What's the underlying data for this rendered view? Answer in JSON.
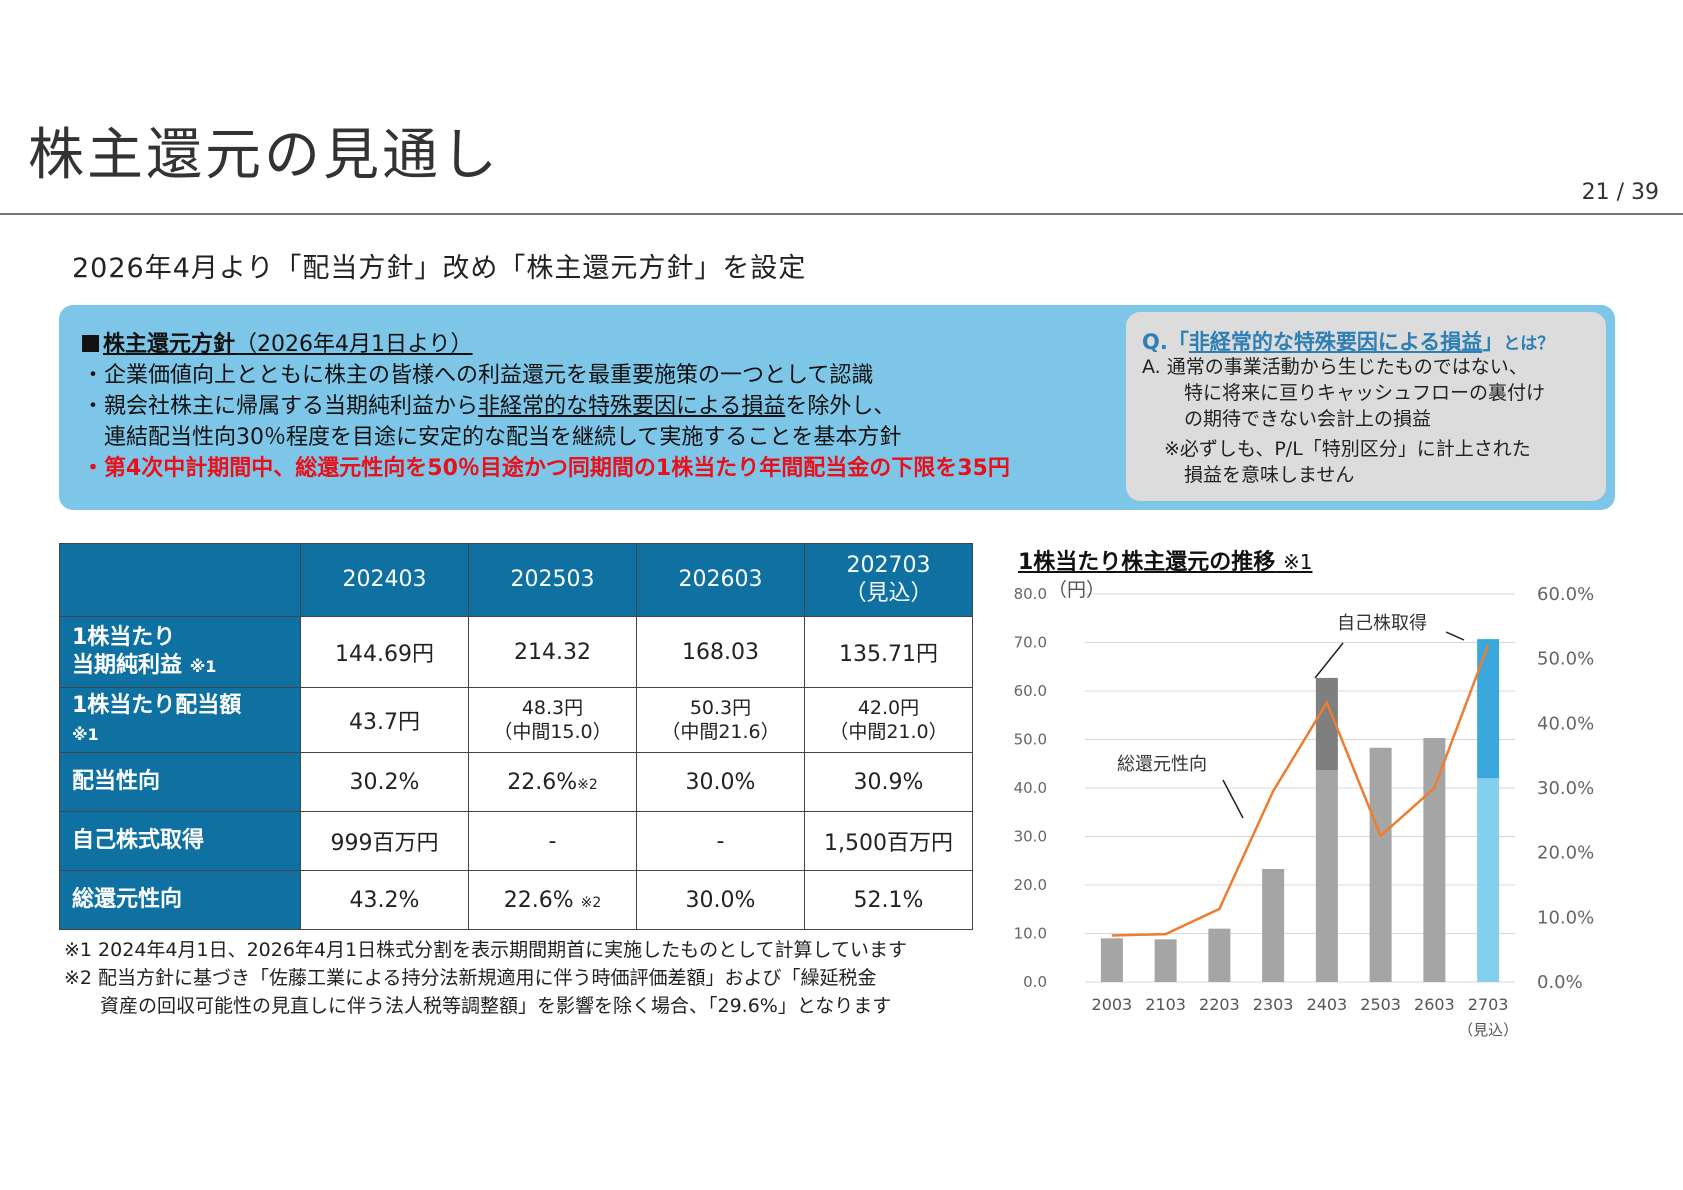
{
  "page": {
    "title": "株主還元の見通し",
    "page_number": "21 / 39",
    "subtitle": "2026年4月より「配当方針」改め「株主還元方針」を設定"
  },
  "policy": {
    "title": "株主還元方針",
    "title_paren": "（2026年4月1日より）",
    "bullet1": "・企業価値向上とともに株主の皆様への利益還元を最重要施策の一つとして認識",
    "bullet2_pre": "・親会社株主に帰属する当期純利益から",
    "bullet2_ul": "非経常的な特殊要因による損益",
    "bullet2_post": "を除外し、",
    "bullet2_line2": "連結配当性向30％程度を目途に安定的な配当を継続して実施することを基本方針",
    "bullet3": "・第4次中計期間中、総還元性向を50％目途かつ同期間の1株当たり年間配当金の下限を35円"
  },
  "qa": {
    "q_prefix": "Q.「",
    "q_main": "非経常的な特殊要因による損益",
    "q_suffix": "」",
    "q_tail": "とは？",
    "a_line1": "A.  通常の事業活動から生じたものではない、",
    "a_line2": "特に将来に亘りキャッシュフローの裏付け",
    "a_line3": "の期待できない会計上の損益",
    "note_line1": "※必ずしも、P/L「特別区分」に計上された",
    "note_line2": "損益を意味しません"
  },
  "table": {
    "columns": [
      "202403",
      "202503",
      "202603",
      "202703"
    ],
    "col4_sub": "（見込）",
    "row1_label1": "1株当たり",
    "row1_label2": "当期純利益",
    "row1_note": "※1",
    "row1": [
      "144.69円",
      "214.32",
      "168.03",
      "135.71円"
    ],
    "row2_label": "1株当たり配当額",
    "row2_note": "※1",
    "row2_c1": "43.7円",
    "row2_c2a": "48.3円",
    "row2_c2b": "（中間15.0）",
    "row2_c3a": "50.3円",
    "row2_c3b": "（中間21.6）",
    "row2_c4a": "42.0円",
    "row2_c4b": "（中間21.0）",
    "row3_label": "配当性向",
    "row3": [
      "30.2%",
      "22.6%",
      "30.0%",
      "30.9%"
    ],
    "row3_mark": "※2",
    "row4_label": "自己株式取得",
    "row4": [
      "999百万円",
      "-",
      "-",
      "1,500百万円"
    ],
    "row5_label": "総還元性向",
    "row5": [
      "43.2%",
      "22.6%",
      "30.0%",
      "52.1%"
    ],
    "row5_mark": "※2"
  },
  "footnotes": {
    "n1": "※1 2024年4月1日、2026年4月1日株式分割を表示期間期首に実施したものとして計算しています",
    "n2a": "※2 配当方針に基づき「佐藤工業による持分法新規適用に伴う時価評価差額」および「繰延税金",
    "n2b": "資産の回収可能性の見直しに伴う法人税等調整額」を影響を除く場合、「29.6%」となります"
  },
  "chart": {
    "title": "1株当たり株主還元の推移",
    "title_note": "※1",
    "y_unit": "（円）",
    "annotation_buyback": "自己株取得",
    "annotation_ratio": "総還元性向"
  },
  "chart_data": {
    "type": "bar",
    "categories": [
      "2003",
      "2103",
      "2203",
      "2303",
      "2403",
      "2503",
      "2603",
      "2703"
    ],
    "category_sub": [
      "",
      "",
      "",
      "",
      "",
      "",
      "",
      "（見込）"
    ],
    "y_left_ticks": [
      "0.0",
      "10.0",
      "20.0",
      "30.0",
      "40.0",
      "50.0",
      "60.0",
      "70.0",
      "80.0"
    ],
    "y_right_ticks": [
      "0.0%",
      "10.0%",
      "20.0%",
      "30.0%",
      "40.0%",
      "50.0%",
      "60.0%"
    ],
    "ylim": [
      0,
      80
    ],
    "y2lim": [
      0,
      60
    ],
    "series": [
      {
        "values": [
          9.0,
          8.8,
          11.0,
          23.3,
          43.7,
          48.3,
          50.3,
          42.0
        ],
        "color": "#a5a5a5",
        "forecast_color": "#85cfee"
      },
      {
        "name": "自己株取得",
        "values": [
          0,
          0,
          0,
          0,
          19.0,
          0,
          0,
          28.7
        ],
        "color": "#7f7f7f",
        "forecast_color": "#3aa8dc"
      },
      {
        "name": "総還元性向",
        "type": "line",
        "axis": "right",
        "values": [
          7.2,
          7.4,
          11.3,
          29.5,
          43.2,
          22.6,
          30.0,
          52.1
        ],
        "color": "#ed7d31"
      }
    ],
    "grid": true
  }
}
